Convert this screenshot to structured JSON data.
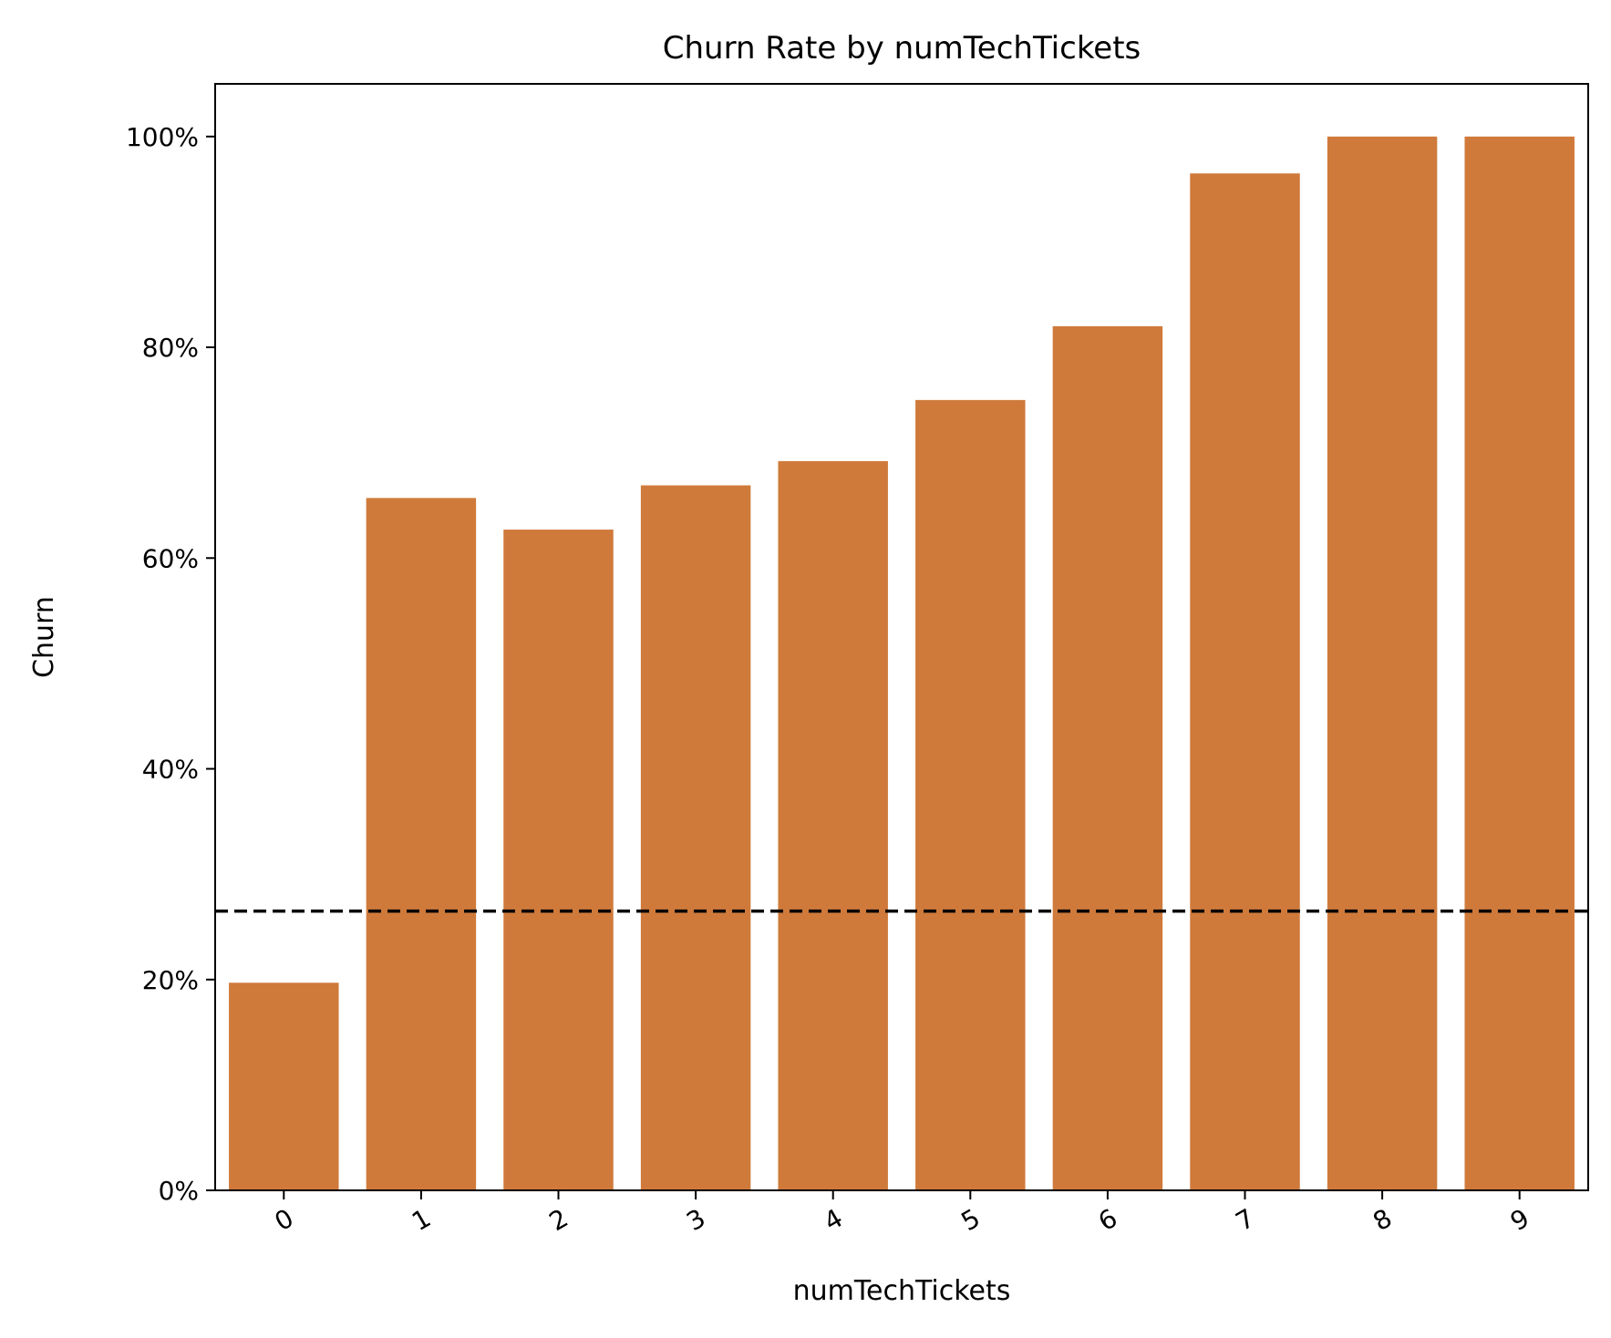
{
  "chart_data": {
    "type": "bar",
    "title": "Churn Rate by numTechTickets",
    "xlabel": "numTechTickets",
    "ylabel": "Churn",
    "categories": [
      "0",
      "1",
      "2",
      "3",
      "4",
      "5",
      "6",
      "7",
      "8",
      "9"
    ],
    "values": [
      0.197,
      0.657,
      0.627,
      0.669,
      0.692,
      0.75,
      0.82,
      0.965,
      1.0,
      1.0
    ],
    "ylim": [
      0,
      1.05
    ],
    "yticks": [
      0,
      0.2,
      0.4,
      0.6,
      0.8,
      1.0
    ],
    "ytick_labels": [
      "0%",
      "20%",
      "40%",
      "60%",
      "80%",
      "100%"
    ],
    "reference_line": {
      "value": 0.265,
      "style": "dashed",
      "color": "#000000"
    },
    "bar_color": "#cf7a3b",
    "grid": false,
    "legend": "none",
    "xtick_rotation_deg": 30
  }
}
